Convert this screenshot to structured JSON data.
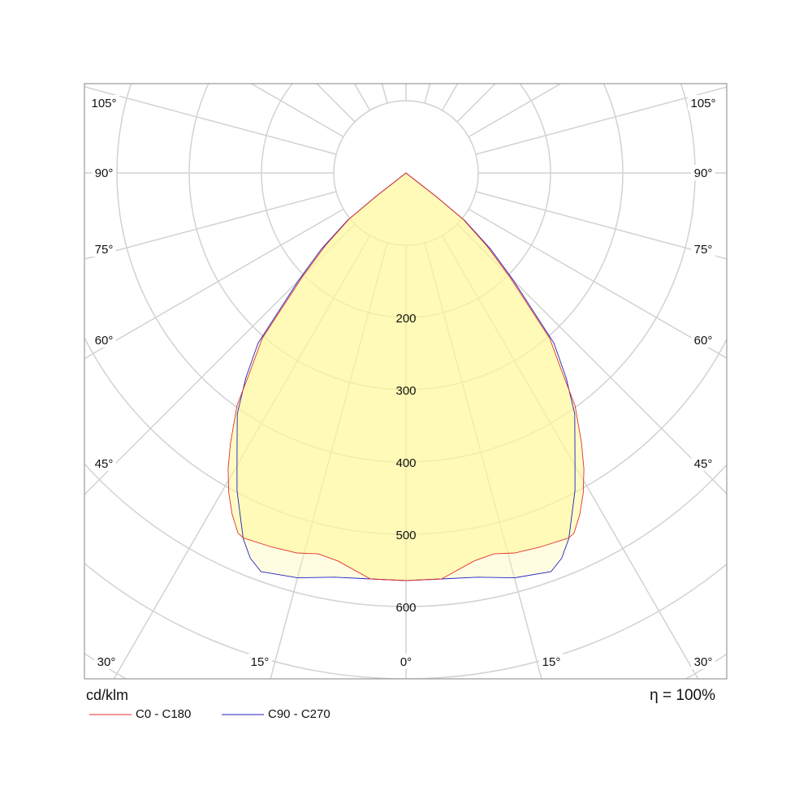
{
  "chart_data": {
    "type": "polar",
    "unit_label": "cd/klm",
    "efficiency_label": "η =  100%",
    "radial_ticks": [
      100,
      200,
      300,
      400,
      500,
      600,
      700,
      800,
      900
    ],
    "radial_tick_labels": [
      "200",
      "300",
      "400",
      "500",
      "600"
    ],
    "radial_labeled_values": [
      200,
      300,
      400,
      500,
      600
    ],
    "spoke_step_deg": 15,
    "angle_labels_side": [
      "105°",
      "90°",
      "75°",
      "60°",
      "45°"
    ],
    "angle_labels_bottom": [
      "30°",
      "15°",
      "0°",
      "15°",
      "30°"
    ],
    "grid": true,
    "legend_position": "bottom-left",
    "series": [
      {
        "name": "C0 - C180",
        "color": "#e03030",
        "angles": [
          0,
          5,
          10,
          13,
          16,
          20,
          24,
          25,
          27,
          29,
          31,
          33,
          36,
          38,
          41,
          45,
          48,
          51,
          52,
          53,
          90
        ],
        "values": [
          564,
          564,
          545,
          541,
          547,
          550,
          553,
          550,
          530,
          506,
          478,
          446,
          398,
          352,
          303,
          202,
          150,
          101,
          50,
          0,
          0
        ]
      },
      {
        "name": "C90 - C270",
        "color": "#2020c0",
        "angles": [
          0,
          5,
          10,
          15,
          20,
          22,
          24,
          28,
          31,
          35,
          38,
          41,
          45,
          48,
          51,
          52,
          53,
          90
        ],
        "values": [
          564,
          564,
          568,
          580,
          587,
          575,
          554,
          498,
          454,
          407,
          360,
          312,
          210,
          158,
          104,
          52,
          0,
          0
        ]
      }
    ]
  }
}
